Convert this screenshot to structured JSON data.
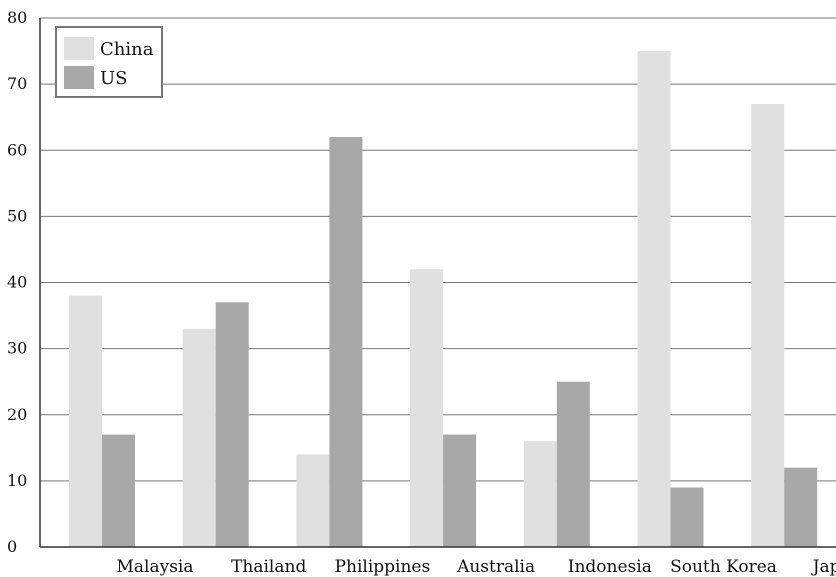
{
  "chart_data": {
    "type": "bar",
    "categories": [
      "Malaysia",
      "Thailand",
      "Philippines",
      "Australia",
      "Indonesia",
      "South Korea",
      "Japan"
    ],
    "series": [
      {
        "name": "China",
        "values": [
          38,
          33,
          14,
          42,
          16,
          75,
          67
        ],
        "color": "#e0e0e0"
      },
      {
        "name": "US",
        "values": [
          17,
          37,
          62,
          17,
          25,
          9,
          12
        ],
        "color": "#a8a8a8"
      }
    ],
    "title": "",
    "xlabel": "",
    "ylabel": "",
    "ylim": [
      0,
      80
    ],
    "yticks": [
      0,
      10,
      20,
      30,
      40,
      50,
      60,
      70,
      80
    ],
    "grid": true,
    "legend_position": "top-left"
  }
}
